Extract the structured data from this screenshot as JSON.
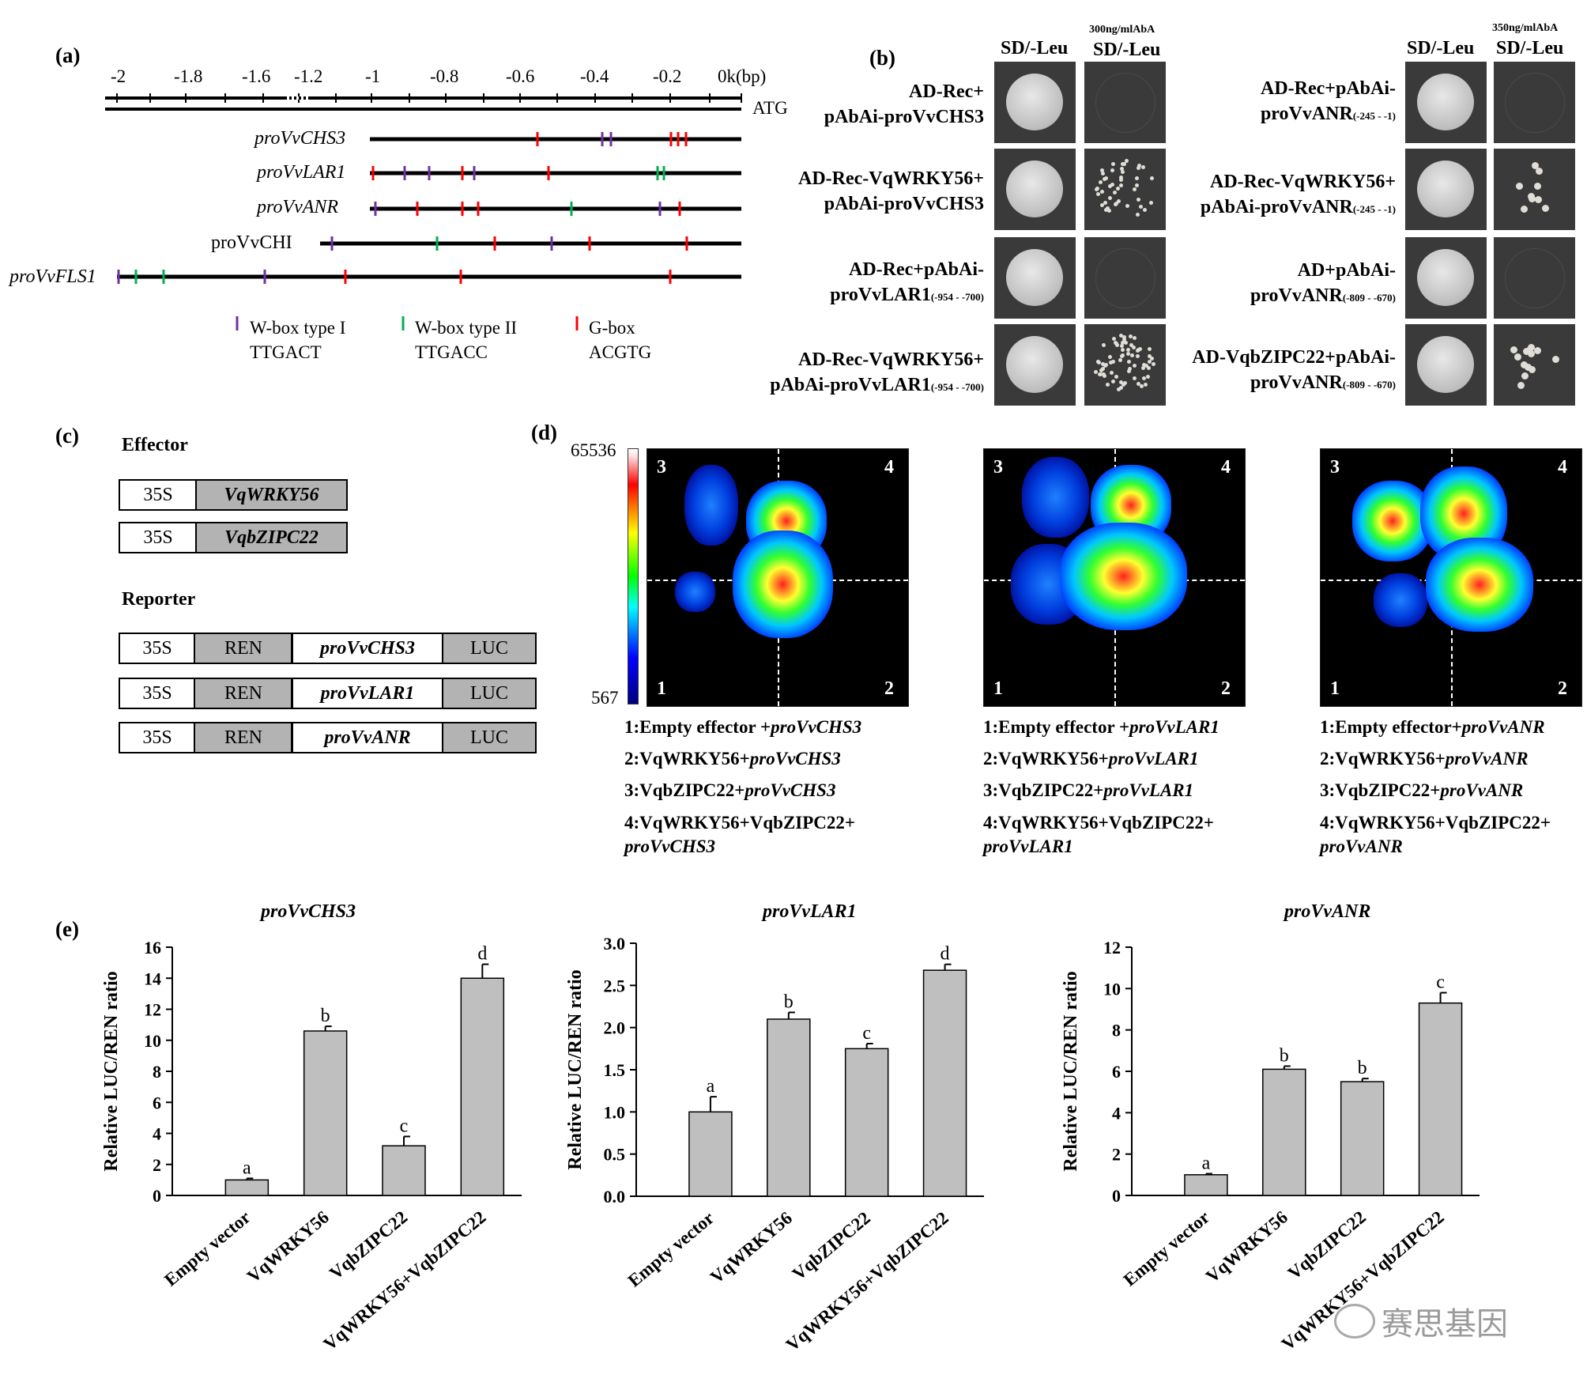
{
  "panel_labels": {
    "a": "(a)",
    "b": "(b)",
    "c": "(c)",
    "d": "(d)",
    "e": "(e)"
  },
  "a": {
    "ticks": [
      "-2",
      "-1.8",
      "-1.6",
      "-1.2",
      "-1",
      "-0.8",
      "-0.6",
      "-0.4",
      "-0.2",
      "0k(bp)"
    ],
    "atg": "ATG",
    "promoters": [
      "proVvCHS3",
      "proVvLAR1",
      "proVvANR",
      "proVvCHI",
      "proVvFLS1"
    ],
    "legend": [
      {
        "name": "W-box type I",
        "seq": "TTGACT",
        "color": "#7030a0"
      },
      {
        "name": "W-box type II",
        "seq": "TTGACC",
        "color": "#00b050"
      },
      {
        "name": "G-box",
        "seq": "ACGTG",
        "color": "#ff0000"
      }
    ]
  },
  "b": {
    "left_headers": {
      "sd": "SD/-Leu",
      "aba_conc": "300ng/mlAbA",
      "sd2": "SD/-Leu"
    },
    "right_headers": {
      "sd": "SD/-Leu",
      "aba_conc": "350ng/mlAbA",
      "sd2": "SD/-Leu"
    },
    "left_rows": [
      {
        "l1": "AD-Rec+",
        "l2": "pAbAi-proVvCHS3",
        "sub": ""
      },
      {
        "l1": "AD-Rec-VqWRKY56+",
        "l2": "pAbAi-proVvCHS3",
        "sub": ""
      },
      {
        "l1": "AD-Rec+pAbAi-",
        "l2": "proVvLAR1",
        "sub": "(-954 - -700)"
      },
      {
        "l1": "AD-Rec-VqWRKY56+",
        "l2": "pAbAi-proVvLAR1",
        "sub": "(-954 - -700)"
      }
    ],
    "right_rows": [
      {
        "l1": "AD-Rec+pAbAi-",
        "l2": "proVvANR",
        "sub": "(-245 - -1)"
      },
      {
        "l1": "AD-Rec-VqWRKY56+",
        "l2": "pAbAi-proVvANR",
        "sub": "(-245 - -1)"
      },
      {
        "l1": "AD+pAbAi-",
        "l2": "proVvANR",
        "sub": "(-809 - -670)"
      },
      {
        "l1": "AD-VqbZIPC22+pAbAi-",
        "l2": "proVvANR",
        "sub": "(-809 - -670)"
      }
    ]
  },
  "c": {
    "effector_title": "Effector",
    "reporter_title": "Reporter",
    "effectors": [
      {
        "p": "35S",
        "g": "VqWRKY56"
      },
      {
        "p": "35S",
        "g": "VqbZIPC22"
      }
    ],
    "reporters": [
      {
        "p": "35S",
        "r": "REN",
        "prom": "proVvCHS3",
        "l": "LUC"
      },
      {
        "p": "35S",
        "r": "REN",
        "prom": "proVvLAR1",
        "l": "LUC"
      },
      {
        "p": "35S",
        "r": "REN",
        "prom": "proVvANR",
        "l": "LUC"
      }
    ]
  },
  "d": {
    "scale_max": "65536",
    "scale_min": "567",
    "quadrant_numbers": [
      "3",
      "4",
      "1",
      "2"
    ],
    "legends": [
      [
        "1:Empty effector +",
        "proVvCHS3",
        "2:VqWRKY56+",
        "proVvCHS3",
        "3:VqbZIPC22+",
        "proVvCHS3",
        "4:VqWRKY56+VqbZIPC22+",
        "proVvCHS3"
      ],
      [
        "1:Empty effector +",
        "proVvLAR1",
        "2:VqWRKY56+",
        "proVvLAR1",
        "3:VqbZIPC22+",
        "proVvLAR1",
        "4:VqWRKY56+VqbZIPC22+",
        "proVvLAR1"
      ],
      [
        "1:Empty effector+",
        "proVvANR",
        "2:VqWRKY56+",
        "proVvANR",
        "3:VqbZIPC22+",
        "proVvANR",
        "4:VqWRKY56+VqbZIPC22+",
        "proVvANR"
      ]
    ]
  },
  "chart_data": [
    {
      "type": "bar",
      "title": "proVvCHS3",
      "ylabel": "Relative LUC/REN ratio",
      "ylim": [
        0,
        16
      ],
      "yticks": [
        "0",
        "2",
        "4",
        "6",
        "8",
        "10",
        "12",
        "14",
        "16"
      ],
      "categories": [
        "Empty vector",
        "VqWRKY56",
        "VqbZIPC22",
        "VqWRKY56+VqbZIPC22"
      ],
      "values": [
        1.0,
        10.6,
        3.2,
        14.0
      ],
      "errors": [
        0.1,
        0.3,
        0.6,
        0.9
      ],
      "letters": [
        "a",
        "b",
        "c",
        "d"
      ]
    },
    {
      "type": "bar",
      "title": "proVvLAR1",
      "ylabel": "Relative LUC/REN ratio",
      "ylim": [
        0,
        3.0
      ],
      "yticks": [
        "0.0",
        "0.5",
        "1.0",
        "1.5",
        "2.0",
        "2.5",
        "3.0"
      ],
      "categories": [
        "Empty vector",
        "VqWRKY56",
        "VqbZIPC22",
        "VqWRKY56+VqbZIPC22"
      ],
      "values": [
        1.0,
        2.1,
        1.75,
        2.68
      ],
      "errors": [
        0.18,
        0.08,
        0.06,
        0.07
      ],
      "letters": [
        "a",
        "b",
        "c",
        "d"
      ]
    },
    {
      "type": "bar",
      "title": "proVvANR",
      "ylabel": "Relative LUC/REN ratio",
      "ylim": [
        0,
        12
      ],
      "yticks": [
        "0",
        "2",
        "4",
        "6",
        "8",
        "10",
        "12"
      ],
      "categories": [
        "Empty vector",
        "VqWRKY56",
        "VqbZIPC22",
        "VqWRKY56+VqbZIPC22"
      ],
      "values": [
        1.0,
        6.1,
        5.5,
        9.3
      ],
      "errors": [
        0.05,
        0.15,
        0.15,
        0.5
      ],
      "letters": [
        "a",
        "b",
        "b",
        "c"
      ]
    }
  ],
  "watermark": "赛思基因"
}
